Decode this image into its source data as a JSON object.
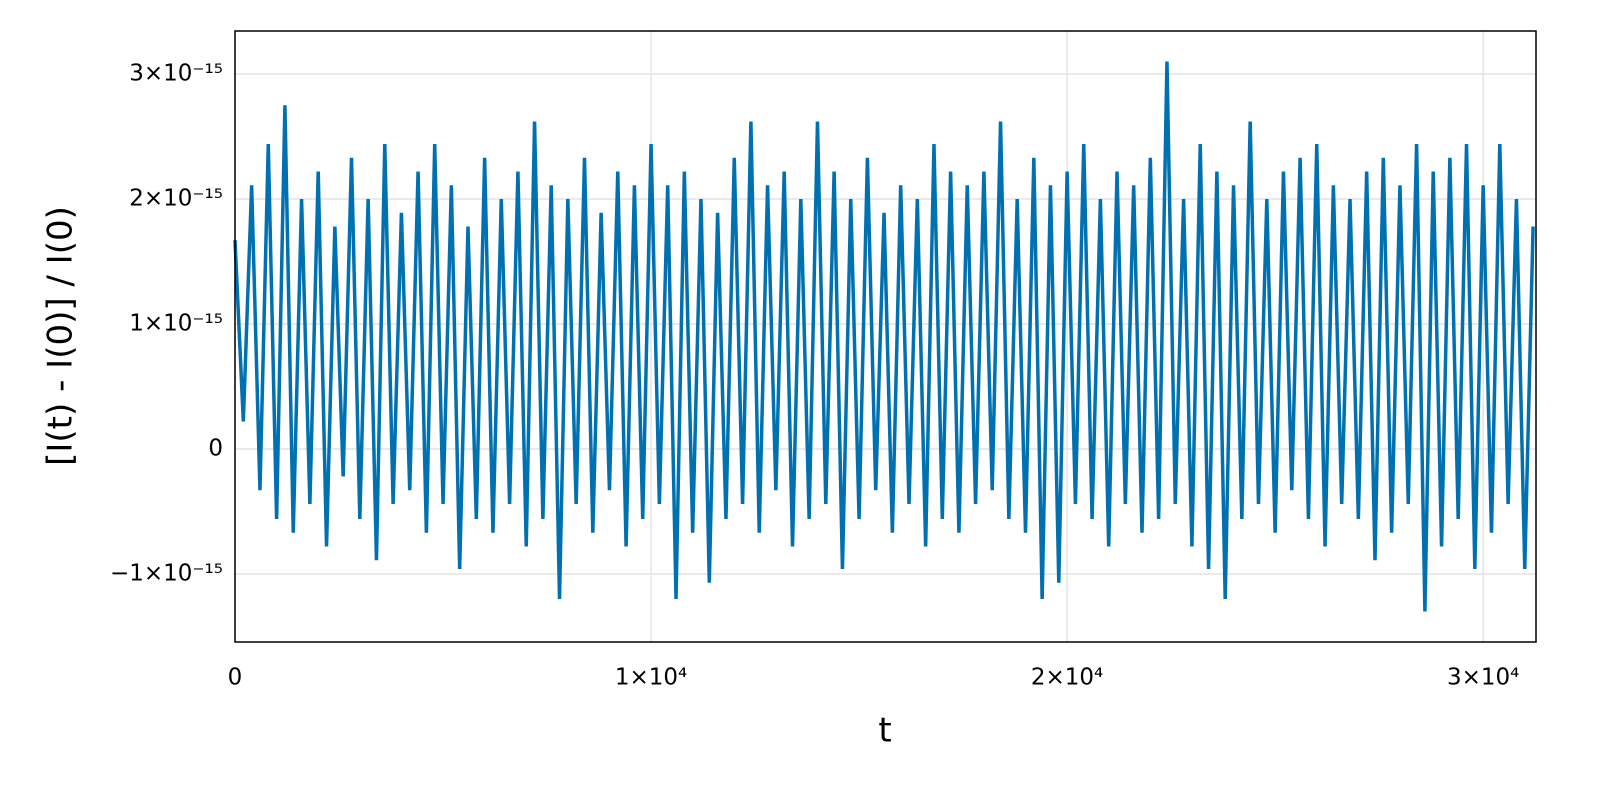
{
  "chart_data": {
    "type": "line",
    "xlabel": "t",
    "ylabel": "[I(t) - I(0)] / I(0)",
    "color": "#0071b0",
    "grid": true,
    "xlim": [
      0,
      31270
    ],
    "ylim": [
      -1.544e-15,
      3.344e-15
    ],
    "xticks": [
      0,
      {
        "value": 10000,
        "label": "1×10⁴"
      },
      {
        "value": 20000,
        "label": "2×10⁴"
      },
      {
        "value": 30000,
        "label": "3×10⁴"
      }
    ],
    "yticks": [
      {
        "value": -1e-15,
        "label": "−1×10⁻¹⁵"
      },
      0,
      {
        "value": 1e-15,
        "label": "1×10⁻¹⁵"
      },
      {
        "value": 2e-15,
        "label": "2×10⁻¹⁵"
      },
      {
        "value": 3e-15,
        "label": "3×10⁻¹⁵"
      }
    ],
    "x": [
      0,
      200,
      400,
      600,
      800,
      1000,
      1200,
      1400,
      1600,
      1800,
      2000,
      2200,
      2400,
      2600,
      2800,
      3000,
      3200,
      3400,
      3600,
      3800,
      4000,
      4200,
      4400,
      4600,
      4800,
      5000,
      5200,
      5400,
      5600,
      5800,
      6000,
      6200,
      6400,
      6600,
      6800,
      7000,
      7200,
      7400,
      7600,
      7800,
      8000,
      8200,
      8400,
      8600,
      8800,
      9000,
      9200,
      9400,
      9600,
      9800,
      10000,
      10200,
      10400,
      10600,
      10800,
      11000,
      11200,
      11400,
      11600,
      11800,
      12000,
      12200,
      12400,
      12600,
      12800,
      13000,
      13200,
      13400,
      13600,
      13800,
      14000,
      14200,
      14400,
      14600,
      14800,
      15000,
      15200,
      15400,
      15600,
      15800,
      16000,
      16200,
      16400,
      16600,
      16800,
      17000,
      17200,
      17400,
      17600,
      17800,
      18000,
      18200,
      18400,
      18600,
      18800,
      19000,
      19200,
      19400,
      19600,
      19800,
      20000,
      20200,
      20400,
      20600,
      20800,
      21000,
      21200,
      21400,
      21600,
      21800,
      22000,
      22200,
      22400,
      22600,
      22800,
      23000,
      23200,
      23400,
      23600,
      23800,
      24000,
      24200,
      24400,
      24600,
      24800,
      25000,
      25200,
      25400,
      25600,
      25800,
      26000,
      26200,
      26400,
      26600,
      26800,
      27000,
      27200,
      27400,
      27600,
      27800,
      28000,
      28200,
      28400,
      28600,
      28800,
      29000,
      29200,
      29400,
      29600,
      29800,
      30000,
      30200,
      30400,
      30600,
      30800,
      31000,
      31200
    ],
    "values": [
      1.67e-15,
      2.2e-16,
      2.11e-15,
      -3.3e-16,
      2.44e-15,
      -5.6e-16,
      2.75e-15,
      -6.7e-16,
      2e-15,
      -4.4e-16,
      2.22e-15,
      -7.8e-16,
      1.78e-15,
      -2.2e-16,
      2.33e-15,
      -5.6e-16,
      2e-15,
      -8.9e-16,
      2.44e-15,
      -4.4e-16,
      1.89e-15,
      -3.3e-16,
      2.22e-15,
      -6.7e-16,
      2.44e-15,
      -4.4e-16,
      2.11e-15,
      -9.6e-16,
      1.78e-15,
      -5.6e-16,
      2.33e-15,
      -6.7e-16,
      2e-15,
      -4.4e-16,
      2.22e-15,
      -7.8e-16,
      2.62e-15,
      -5.6e-16,
      2.11e-15,
      -1.2e-15,
      2e-15,
      -4.4e-16,
      2.33e-15,
      -6.7e-16,
      1.89e-15,
      -3.3e-16,
      2.22e-15,
      -7.8e-16,
      2.11e-15,
      -5.6e-16,
      2.44e-15,
      -4.4e-16,
      2.11e-15,
      -1.2e-15,
      2.22e-15,
      -6.7e-16,
      2e-15,
      -1.07e-15,
      1.89e-15,
      -5.6e-16,
      2.33e-15,
      -4.4e-16,
      2.62e-15,
      -6.7e-16,
      2.11e-15,
      -3.3e-16,
      2.22e-15,
      -7.8e-16,
      2e-15,
      -5.6e-16,
      2.62e-15,
      -4.4e-16,
      2.22e-15,
      -9.6e-16,
      2e-15,
      -5.6e-16,
      2.33e-15,
      -3.3e-16,
      1.89e-15,
      -6.7e-16,
      2.11e-15,
      -4.4e-16,
      2e-15,
      -7.8e-16,
      2.44e-15,
      -5.6e-16,
      2.22e-15,
      -6.7e-16,
      2.11e-15,
      -4.4e-16,
      2.22e-15,
      -3.3e-16,
      2.62e-15,
      -5.6e-16,
      2e-15,
      -6.7e-16,
      2.33e-15,
      -1.2e-15,
      2.11e-15,
      -1.07e-15,
      2.22e-15,
      -4.4e-16,
      2.44e-15,
      -5.6e-16,
      2e-15,
      -7.8e-16,
      2.22e-15,
      -4.4e-16,
      2.11e-15,
      -6.7e-16,
      2.33e-15,
      -5.6e-16,
      3.1e-15,
      -4.4e-16,
      2e-15,
      -7.8e-16,
      2.44e-15,
      -9.6e-16,
      2.22e-15,
      -1.2e-15,
      2.11e-15,
      -5.6e-16,
      2.62e-15,
      -4.4e-16,
      2e-15,
      -6.7e-16,
      2.22e-15,
      -3.3e-16,
      2.33e-15,
      -5.6e-16,
      2.44e-15,
      -7.8e-16,
      2.11e-15,
      -4.4e-16,
      2e-15,
      -5.6e-16,
      2.22e-15,
      -8.9e-16,
      2.33e-15,
      -6.7e-16,
      2.11e-15,
      -4.4e-16,
      2.44e-15,
      -1.3e-15,
      2.22e-15,
      -7.8e-16,
      2.33e-15,
      -5.6e-16,
      2.44e-15,
      -9.6e-16,
      2.11e-15,
      -6.7e-16,
      2.44e-15,
      -4.4e-16,
      2e-15,
      -9.6e-16,
      1.78e-15
    ]
  }
}
